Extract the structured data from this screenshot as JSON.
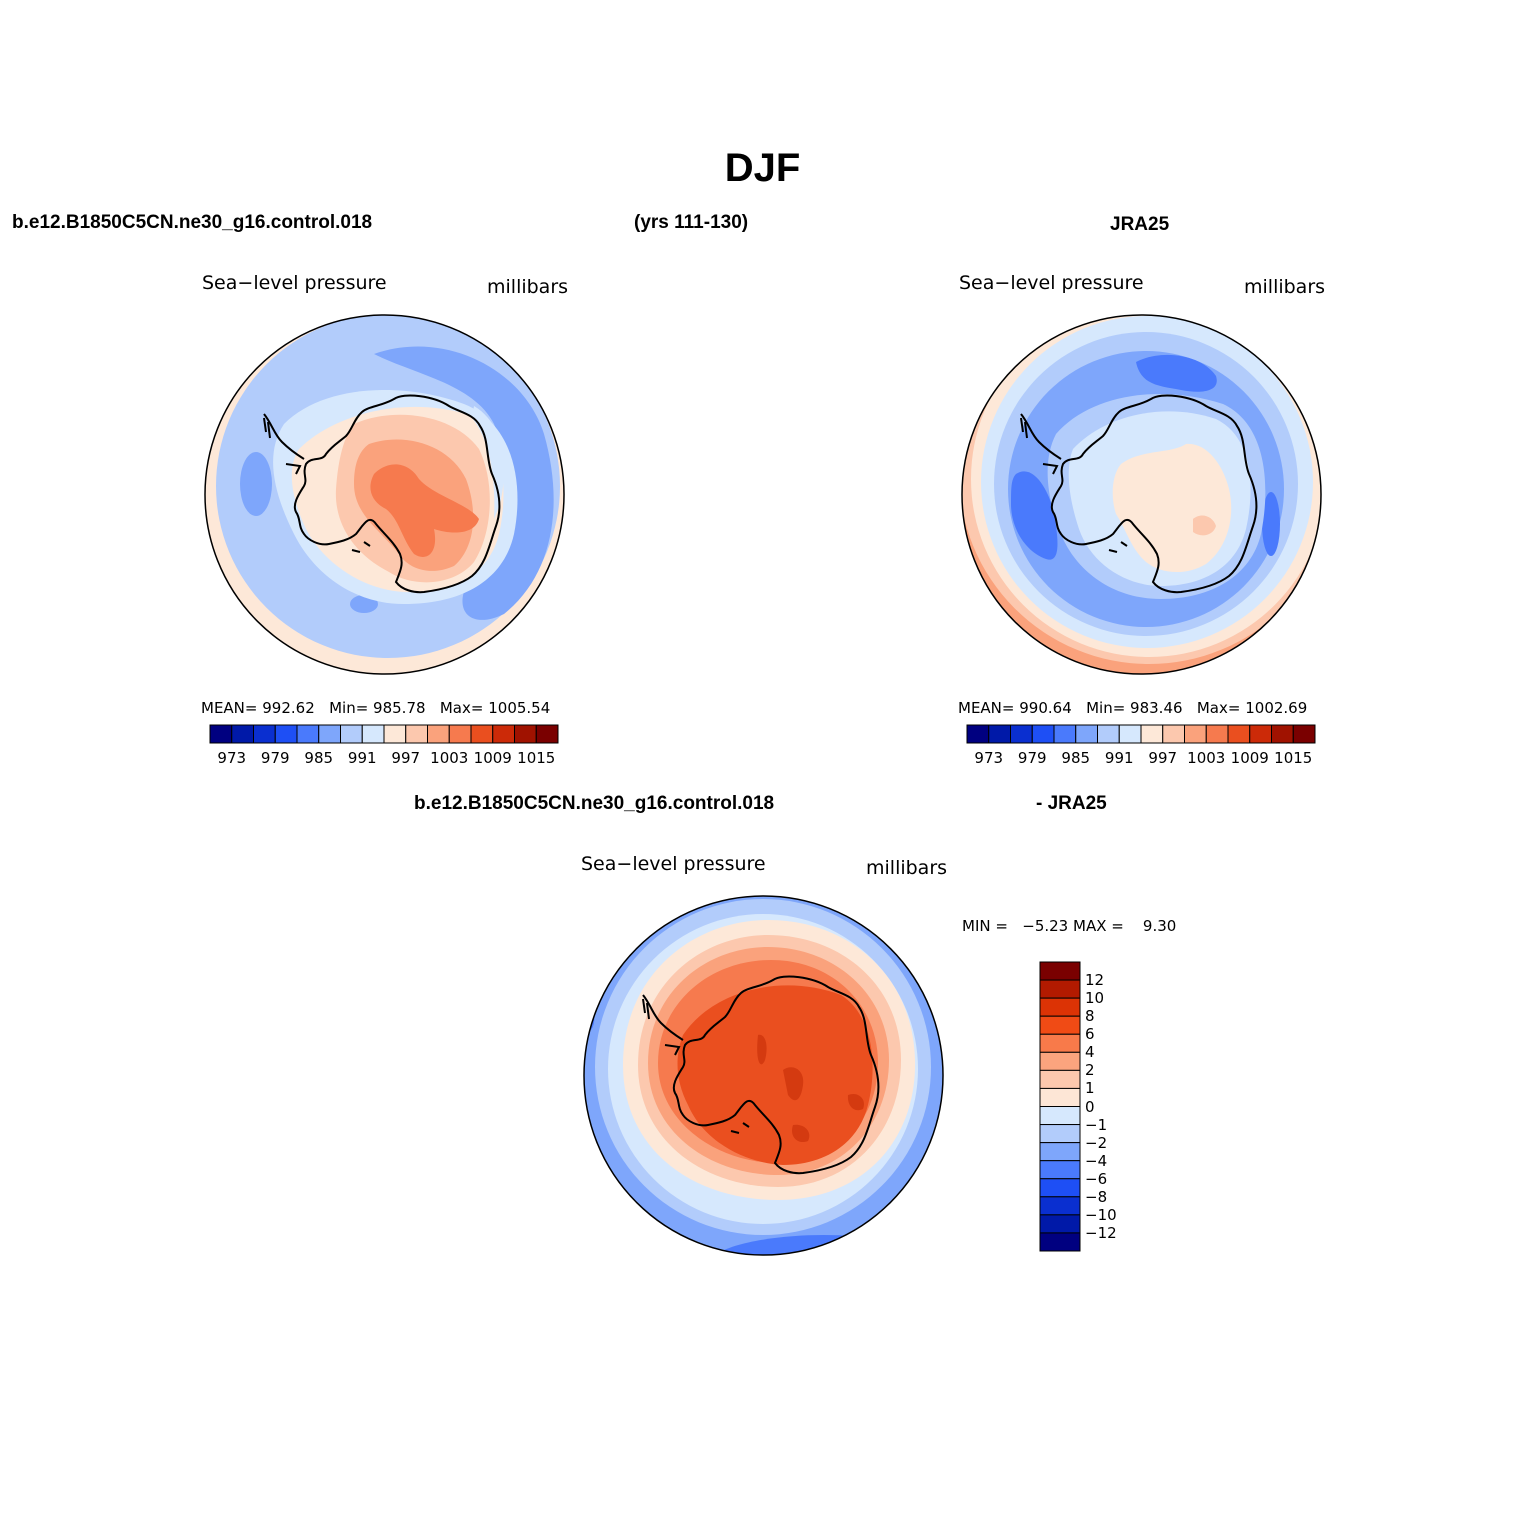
{
  "title": "DJF",
  "header": {
    "case": "b.e12.B1850C5CN.ne30_g16.control.018",
    "years": "(yrs 111-130)",
    "obs": "JRA25",
    "diff_case": "b.e12.B1850C5CN.ne30_g16.control.018",
    "diff_obs": "- JRA25"
  },
  "panels": [
    {
      "id": "model",
      "label": "Sea−level pressure",
      "units": "millibars",
      "stats": {
        "mean_label": "MEAN=",
        "mean": "992.62",
        "min_label": "Min=",
        "min": "985.78",
        "max_label": "Max=",
        "max": "1005.54"
      }
    },
    {
      "id": "obs",
      "label": "Sea−level pressure",
      "units": "millibars",
      "stats": {
        "mean_label": "MEAN=",
        "mean": "990.64",
        "min_label": "Min=",
        "min": "983.46",
        "max_label": "Max=",
        "max": "1002.69"
      }
    },
    {
      "id": "diff",
      "label": "Sea−level pressure",
      "units": "millibars",
      "stats": {
        "min_label": "MIN =",
        "min": "−5.23",
        "max_label": "MAX =",
        "max": "9.30"
      }
    }
  ],
  "colorbar_abs": {
    "tick_labels": [
      "973",
      "979",
      "985",
      "991",
      "997",
      "1003",
      "1009",
      "1015"
    ],
    "colors": [
      "#000080",
      "#0019a8",
      "#0a2fd0",
      "#1e4ff5",
      "#4a7afc",
      "#7ea6fb",
      "#b2ccfb",
      "#d6e8fd",
      "#fde8d8",
      "#fcc8ae",
      "#faa27c",
      "#f67a4e",
      "#ea4f1f",
      "#cc2a08",
      "#a01200",
      "#7a0000"
    ]
  },
  "colorbar_diff": {
    "tick_labels": [
      "12",
      "10",
      "8",
      "6",
      "4",
      "2",
      "1",
      "0",
      "−1",
      "−2",
      "−4",
      "−6",
      "−8",
      "−10",
      "−12"
    ],
    "colors_top_to_bottom": [
      "#7a0000",
      "#b21a00",
      "#dc3305",
      "#f04b15",
      "#f87a4a",
      "#fba47e",
      "#fcc8ae",
      "#fde6d6",
      "#d6e8fd",
      "#b2ccfb",
      "#7ea6fb",
      "#4a7afc",
      "#1e4ff5",
      "#0a2fd0",
      "#0019a8",
      "#000080"
    ]
  },
  "map_colors": {
    "c_1015": "#fde8d8",
    "c_997": "#fde8d8",
    "c_1003": "#fcc8ae",
    "c_1009": "#faa27c",
    "c_hi": "#f67a4e",
    "c_991": "#d6e8fd",
    "c_988": "#b2ccfb",
    "c_985": "#7ea6fb",
    "c_982": "#4a7afc",
    "c_979": "#1e4ff5",
    "d_pos12": "#ea4f1f",
    "d_pos8": "#f67a4e",
    "d_pos4": "#faa27c",
    "d_pos1": "#fde8d8",
    "d_neg1": "#d6e8fd",
    "d_neg2": "#b2ccfb",
    "d_neg4": "#7ea6fb",
    "d_neg6": "#4a7afc"
  }
}
